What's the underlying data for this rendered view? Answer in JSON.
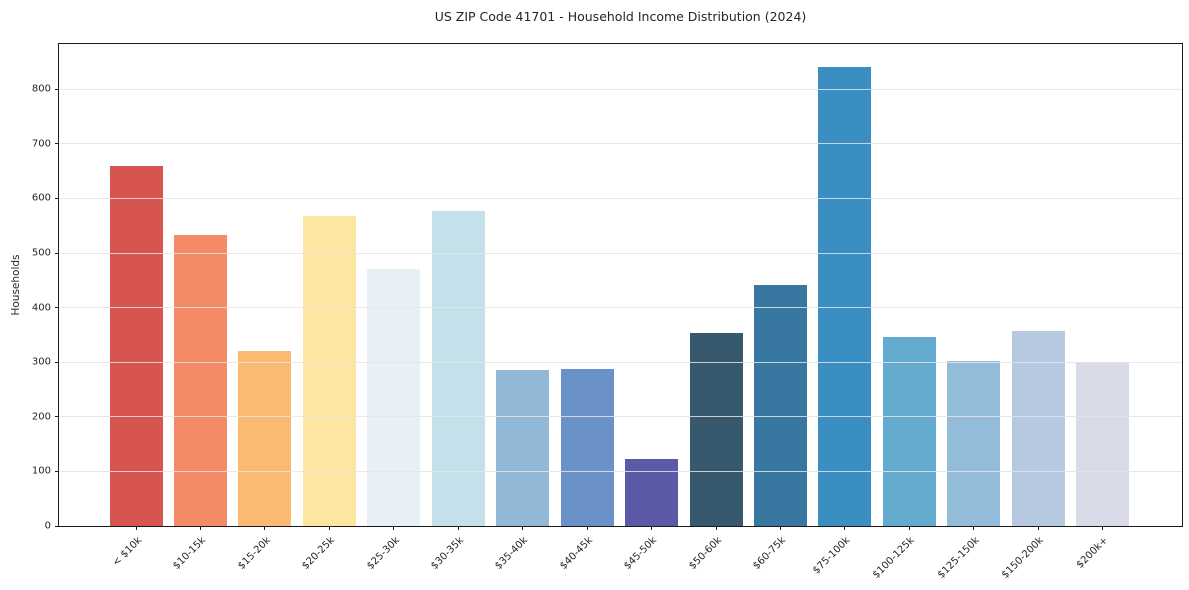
{
  "chart_data": {
    "type": "bar",
    "title": "US ZIP Code 41701 - Household Income Distribution (2024)",
    "xlabel": "",
    "ylabel": "Households",
    "categories": [
      "< $10k",
      "$10-15k",
      "$15-20k",
      "$20-25k",
      "$25-30k",
      "$30-35k",
      "$35-40k",
      "$40-45k",
      "$45-50k",
      "$50-60k",
      "$60-75k",
      "$75-100k",
      "$100-125k",
      "$125-150k",
      "$150-200k",
      "$200k+"
    ],
    "values": [
      660,
      534,
      320,
      568,
      470,
      578,
      285,
      287,
      122,
      354,
      442,
      841,
      347,
      303,
      358,
      301
    ],
    "bar_colors": [
      "#d6564f",
      "#f48a66",
      "#faba74",
      "#fce6a0",
      "#e7f1f5",
      "#c3e0eb",
      "#92b8d8",
      "#6b92c8",
      "#5b5aa8",
      "#36596d",
      "#3878a0",
      "#3a8ec1",
      "#63aacf",
      "#92bcd9",
      "#b7c9e0",
      "#dadbe8"
    ],
    "ylim": [
      0,
      883
    ],
    "yticks": [
      0,
      100,
      200,
      300,
      400,
      500,
      600,
      700,
      800
    ],
    "grid": "horizontal",
    "legend": "none",
    "background_color": "#ffffff",
    "axis_color": "#1a1a1a",
    "grid_color": "#e4e4e4",
    "text_color": "#262626"
  }
}
